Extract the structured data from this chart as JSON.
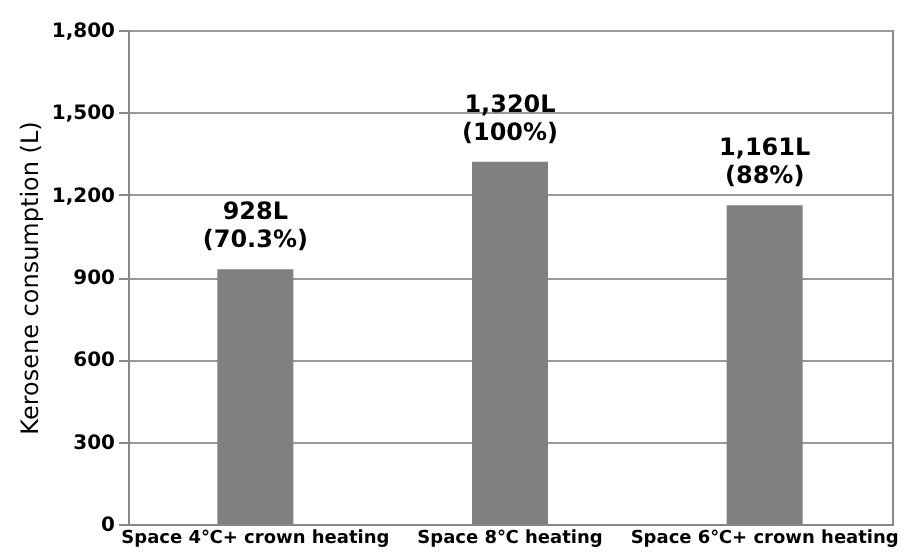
{
  "chart_data": {
    "type": "bar",
    "ylabel": "Kerosene consumption (L)",
    "categories": [
      "Space 4℃+ crown heating",
      "Space 8℃  heating",
      "Space 6℃+ crown heating"
    ],
    "values": [
      928,
      1320,
      1161
    ],
    "value_labels": [
      "928L\n(70.3%)",
      "1,320L\n(100%)",
      "1,161L\n(88%)"
    ],
    "color": "#808080",
    "ylim": [
      0,
      1800
    ],
    "yticks": [
      {
        "value": 0,
        "label": "0"
      },
      {
        "value": 300,
        "label": "300"
      },
      {
        "value": 600,
        "label": "600"
      },
      {
        "value": 900,
        "label": "900"
      },
      {
        "value": 1200,
        "label": "1,200"
      },
      {
        "value": 1500,
        "label": "1,500"
      },
      {
        "value": 1800,
        "label": "1,800"
      }
    ],
    "grid": "y"
  }
}
